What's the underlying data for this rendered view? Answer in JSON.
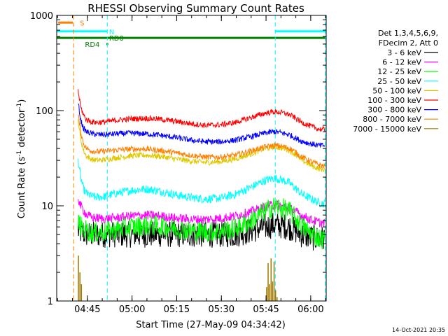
{
  "chart_data": {
    "type": "line",
    "title": "RHESSI Observing Summary Count Rates",
    "xlabel": "Start Time (27-May-09 04:34:42)",
    "ylabel_main": "Count Rate (s",
    "ylabel_sup1": "-1",
    "ylabel_mid": " detector",
    "ylabel_sup2": "-1",
    "ylabel_end": ")",
    "x_unit": "minutes since 04:34:42",
    "xlim": [
      0,
      90.5
    ],
    "ylim": [
      1,
      1000
    ],
    "y_scale": "log",
    "x_ticks": [
      {
        "label": "04:45",
        "x": 10.3
      },
      {
        "label": "05:00",
        "x": 25.3
      },
      {
        "label": "05:15",
        "x": 40.3
      },
      {
        "label": "05:30",
        "x": 55.3
      },
      {
        "label": "05:45",
        "x": 70.3
      },
      {
        "label": "06:00",
        "x": 85.3
      }
    ],
    "y_ticks": [
      {
        "label": "1",
        "y": 1
      },
      {
        "label": "10",
        "y": 10
      },
      {
        "label": "100",
        "y": 100
      },
      {
        "label": "1000",
        "y": 1000
      }
    ],
    "legend_header": [
      "Det 1,3,4,5,6,9,",
      "FDecim 2, Att 0"
    ],
    "legend_position": "right",
    "series": [
      {
        "name": "3 - 6 keV",
        "color": "#000000",
        "x": [
          7.2,
          8,
          10,
          12,
          16,
          20,
          25,
          30,
          35,
          40,
          45,
          50,
          55,
          60,
          65,
          70,
          73,
          75,
          78,
          80,
          82,
          85,
          88,
          90
        ],
        "y": [
          5.5,
          5.3,
          5.0,
          5.0,
          5.0,
          5.0,
          5.0,
          5.0,
          5.0,
          5.0,
          5.0,
          5.0,
          5.0,
          5.0,
          5.5,
          6.0,
          6.3,
          6.2,
          6.0,
          5.5,
          5.0,
          4.7,
          4.5,
          4.5
        ]
      },
      {
        "name": "6 - 12 keV",
        "color": "#ff00ff",
        "x": [
          7.2,
          8,
          9,
          10,
          12,
          16,
          20,
          25,
          30,
          35,
          40,
          45,
          50,
          55,
          60,
          65,
          70,
          73,
          75,
          78,
          80,
          82,
          85,
          88,
          90
        ],
        "y": [
          12,
          10,
          9,
          8,
          7.5,
          7.3,
          7.5,
          7.8,
          8.0,
          7.8,
          7.4,
          7.2,
          7.2,
          7.4,
          7.8,
          8.6,
          9.8,
          10.2,
          10.0,
          9.5,
          8.8,
          8.0,
          7.2,
          6.7,
          6.5
        ]
      },
      {
        "name": "12 - 25 keV",
        "color": "#00ff00",
        "x": [
          7.2,
          8,
          10,
          12,
          16,
          20,
          25,
          30,
          35,
          40,
          45,
          50,
          55,
          60,
          65,
          70,
          73,
          75,
          78,
          80,
          82,
          85,
          88,
          90
        ],
        "y": [
          7.0,
          6.0,
          5.5,
          5.2,
          5.3,
          5.6,
          6.0,
          6.2,
          6.1,
          5.8,
          5.5,
          5.3,
          5.4,
          5.8,
          6.8,
          8.8,
          9.8,
          9.6,
          8.8,
          7.5,
          6.3,
          5.2,
          4.6,
          4.4
        ]
      },
      {
        "name": "25 - 50 keV",
        "color": "#00ffff",
        "x": [
          7.2,
          8,
          9,
          10,
          12,
          14,
          16,
          20,
          25,
          30,
          35,
          40,
          45,
          50,
          55,
          60,
          65,
          70,
          73,
          75,
          78,
          80,
          82,
          85,
          88,
          90
        ],
        "y": [
          30,
          20,
          15,
          13.5,
          12.5,
          12.3,
          12.5,
          13.5,
          14.5,
          15.0,
          14.2,
          13.0,
          12.2,
          11.8,
          12.0,
          13.2,
          15.5,
          18.5,
          19.5,
          19.0,
          17.5,
          15.5,
          13.5,
          12.0,
          10.8,
          10.5
        ]
      },
      {
        "name": "50 - 100 keV",
        "color": "#e0c800",
        "x": [
          7.2,
          8,
          9,
          10,
          12,
          14,
          16,
          20,
          25,
          30,
          35,
          40,
          45,
          50,
          55,
          60,
          65,
          70,
          73,
          75,
          78,
          80,
          82,
          85,
          88,
          90
        ],
        "y": [
          80,
          50,
          38,
          33,
          30.5,
          30.0,
          30.5,
          32.0,
          33.5,
          34.0,
          33.0,
          31.0,
          29.5,
          28.5,
          29.0,
          31.0,
          35.0,
          40.0,
          41.5,
          41.0,
          38.5,
          35.0,
          30.5,
          27.0,
          24.5,
          24.0
        ]
      },
      {
        "name": "100 - 300 keV",
        "color": "#ff0000",
        "x": [
          7.2,
          8,
          9,
          10,
          12,
          14,
          16,
          20,
          25,
          30,
          35,
          40,
          45,
          50,
          55,
          60,
          65,
          70,
          73,
          75,
          78,
          80,
          82,
          85,
          88,
          90
        ],
        "y": [
          160,
          110,
          90,
          80,
          76,
          75,
          76,
          79,
          82,
          83,
          81,
          77,
          73,
          70,
          71,
          75,
          84,
          94,
          97,
          96,
          91,
          84,
          76,
          69,
          64,
          63
        ]
      },
      {
        "name": "300 - 800 keV",
        "color": "#0000ff",
        "x": [
          7.2,
          8,
          9,
          10,
          12,
          14,
          16,
          20,
          25,
          30,
          35,
          40,
          45,
          50,
          55,
          60,
          65,
          70,
          73,
          75,
          78,
          80,
          82,
          85,
          88,
          90
        ],
        "y": [
          120,
          80,
          65,
          60,
          57,
          56,
          56,
          57,
          58,
          57,
          55,
          52,
          49,
          47,
          47,
          49,
          53,
          58,
          60,
          59,
          56,
          52,
          48,
          45,
          43,
          43
        ]
      },
      {
        "name": "800 - 7000 keV",
        "color": "#ff8000",
        "x": [
          7.2,
          8,
          9,
          10,
          12,
          14,
          16,
          20,
          25,
          30,
          35,
          40,
          45,
          50,
          55,
          60,
          65,
          70,
          73,
          75,
          78,
          80,
          82,
          85,
          88,
          90
        ],
        "y": [
          90,
          60,
          45,
          40,
          37.5,
          37.0,
          37.5,
          38.5,
          39.5,
          39.5,
          38.0,
          36.0,
          34.0,
          32.5,
          32.5,
          34.0,
          37.5,
          41.5,
          43.0,
          42.5,
          40.5,
          37.0,
          33.0,
          29.5,
          27.0,
          26.0
        ]
      },
      {
        "name": "7000 - 15000 keV",
        "color": "#a07800",
        "x": [
          7.3,
          7.8,
          8.3,
          8.8,
          9.3,
          70.5,
          71.0,
          71.5,
          72.0,
          72.5,
          73.0,
          73.5,
          74.0
        ],
        "y": [
          3.0,
          2.0,
          1.5,
          1.0,
          1.0,
          1.4,
          2.5,
          1.5,
          2.8,
          1.6,
          2.6,
          1.3,
          1.1
        ]
      }
    ],
    "time_markers": [
      {
        "x": 5.7,
        "color": "#ff8000"
      },
      {
        "x": 17.0,
        "color": "#00ffff"
      },
      {
        "x": 73.4,
        "color": "#00ffff"
      },
      {
        "x": 90.2,
        "color": "#00ffff"
      }
    ],
    "state_bars": [
      {
        "label": "S",
        "color": "#ff8000",
        "x0": 0.5,
        "x1": 5.4,
        "y": 840
      },
      {
        "label": "N",
        "color": "#00ffff",
        "segments": [
          [
            0,
            17.0
          ],
          [
            73.4,
            90.5
          ]
        ],
        "y": 680
      },
      {
        "label": "RD0",
        "color": "#008000",
        "x0": 0,
        "x1": 90.5,
        "y": 580
      },
      {
        "label": "RD4",
        "color": "#008000",
        "x0": 16.7,
        "x1": 17.3,
        "y": 500
      }
    ],
    "footer_stamp": "14-Oct-2021 20:35"
  }
}
